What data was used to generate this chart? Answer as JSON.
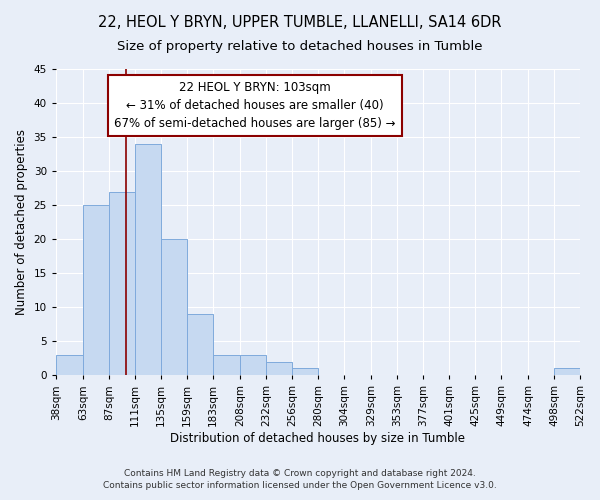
{
  "title1": "22, HEOL Y BRYN, UPPER TUMBLE, LLANELLI, SA14 6DR",
  "title2": "Size of property relative to detached houses in Tumble",
  "xlabel": "Distribution of detached houses by size in Tumble",
  "ylabel": "Number of detached properties",
  "bin_labels": [
    "38sqm",
    "63sqm",
    "87sqm",
    "111sqm",
    "135sqm",
    "159sqm",
    "183sqm",
    "208sqm",
    "232sqm",
    "256sqm",
    "280sqm",
    "304sqm",
    "329sqm",
    "353sqm",
    "377sqm",
    "401sqm",
    "425sqm",
    "449sqm",
    "474sqm",
    "498sqm",
    "522sqm"
  ],
  "bar_values": [
    3,
    25,
    27,
    34,
    20,
    9,
    3,
    3,
    2,
    1,
    0,
    0,
    0,
    0,
    0,
    0,
    0,
    0,
    0,
    1
  ],
  "bin_edges": [
    38,
    63,
    87,
    111,
    135,
    159,
    183,
    208,
    232,
    256,
    280,
    304,
    329,
    353,
    377,
    401,
    425,
    449,
    474,
    498,
    522
  ],
  "bar_color": "#c6d9f1",
  "bar_edge_color": "#7faadc",
  "vline_x": 103,
  "vline_color": "#8b0000",
  "annotation_line1": "22 HEOL Y BRYN: 103sqm",
  "annotation_line2": "← 31% of detached houses are smaller (40)",
  "annotation_line3": "67% of semi-detached houses are larger (85) →",
  "annotation_box_color": "#ffffff",
  "annotation_box_edge_color": "#8b0000",
  "ylim": [
    0,
    45
  ],
  "yticks": [
    0,
    5,
    10,
    15,
    20,
    25,
    30,
    35,
    40,
    45
  ],
  "bg_color": "#e8eef8",
  "grid_color": "#ffffff",
  "footer1": "Contains HM Land Registry data © Crown copyright and database right 2024.",
  "footer2": "Contains public sector information licensed under the Open Government Licence v3.0.",
  "title1_fontsize": 10.5,
  "title2_fontsize": 9.5,
  "tick_fontsize": 7.5,
  "ylabel_fontsize": 8.5,
  "xlabel_fontsize": 8.5,
  "annotation_fontsize": 8.5,
  "footer_fontsize": 6.5
}
